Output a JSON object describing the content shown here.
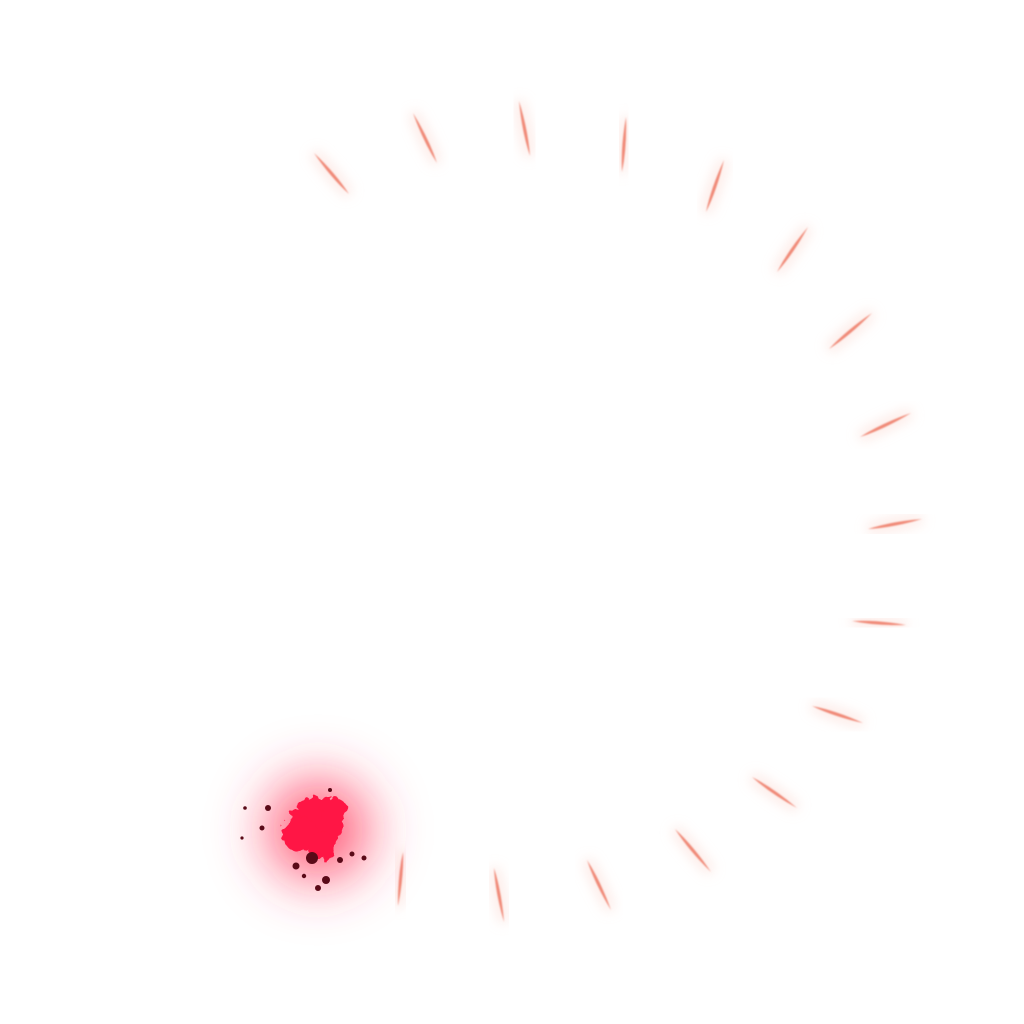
{
  "scene": {
    "background_color": "#ffffff",
    "effect": "circular-slash-trail",
    "streak_count": 18,
    "streak_color": "#f08a78",
    "streak_glow_color": "#fbd7cf",
    "impact_core_color": "#ff1744",
    "impact_glow_color": "#ff3355",
    "impact_debris_color": "#5a0a18"
  }
}
